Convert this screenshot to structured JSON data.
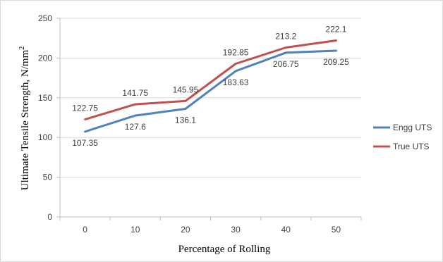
{
  "chart_data": {
    "type": "line",
    "x": [
      "0",
      "10",
      "20",
      "30",
      "40",
      "50"
    ],
    "series": [
      {
        "name": "Engg UTS",
        "values": [
          107.35,
          127.6,
          136.1,
          183.63,
          206.75,
          209.25
        ],
        "color": "#4f81bd"
      },
      {
        "name": "True UTS",
        "values": [
          122.75,
          141.75,
          145.95,
          192.85,
          213.2,
          222.1
        ],
        "color": "#c0504d"
      }
    ],
    "data_labels": {
      "Engg UTS": [
        "107.35",
        "127.6",
        "136.1",
        "183.63",
        "206.75",
        "209.25"
      ],
      "True UTS": [
        "122.75",
        "141.75",
        "145.95",
        "192.85",
        "213.2",
        "222.1"
      ]
    },
    "xlabel": "Percentage of Rolling",
    "ylabel": "Ultimate Tensile Strength, N/mm",
    "ylabel_superscript": "2",
    "ylim": [
      0,
      250
    ],
    "yticks": [
      "0",
      "50",
      "100",
      "150",
      "200",
      "250"
    ],
    "grid": true,
    "legend": "right"
  }
}
